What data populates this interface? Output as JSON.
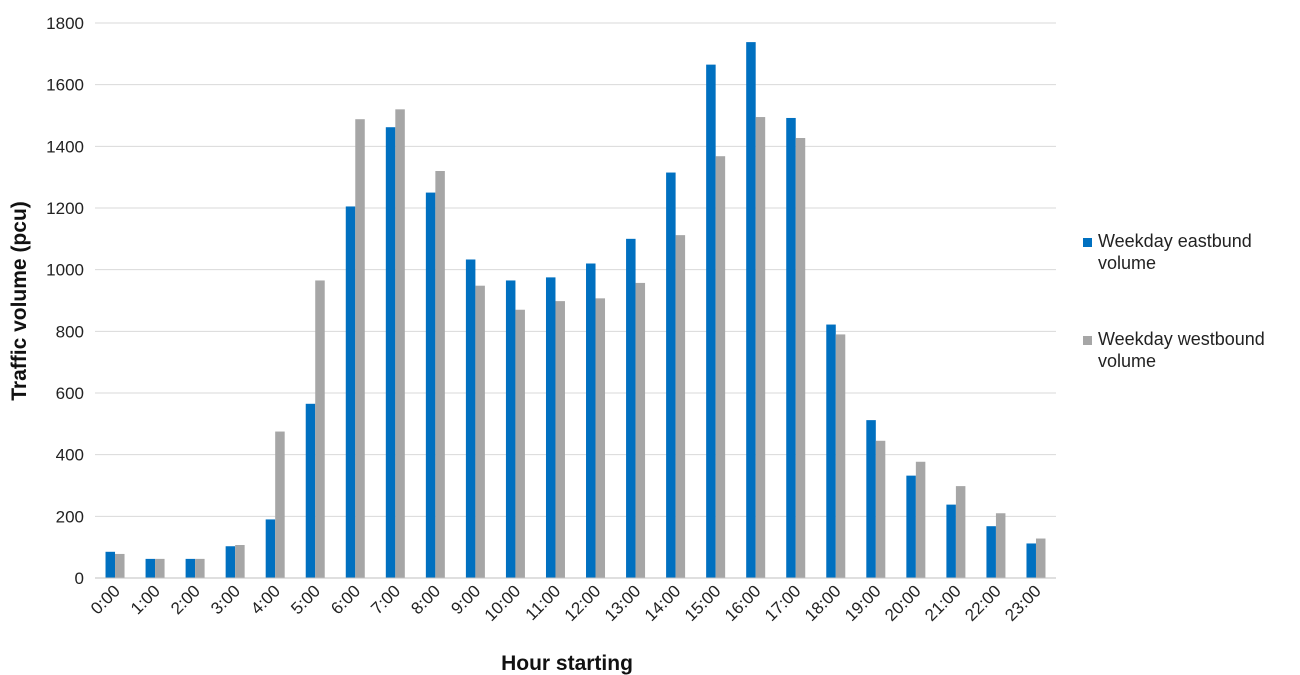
{
  "chart_data": {
    "type": "bar",
    "title": "",
    "xlabel": "Hour starting",
    "ylabel": "Traffic volume (pcu)",
    "ylim": [
      0,
      1800
    ],
    "yticks": [
      0,
      200,
      400,
      600,
      800,
      1000,
      1200,
      1400,
      1600,
      1800
    ],
    "grid": true,
    "legend_position": "right",
    "categories": [
      "0:00",
      "1:00",
      "2:00",
      "3:00",
      "4:00",
      "5:00",
      "6:00",
      "7:00",
      "8:00",
      "9:00",
      "10:00",
      "11:00",
      "12:00",
      "13:00",
      "14:00",
      "15:00",
      "16:00",
      "17:00",
      "18:00",
      "19:00",
      "20:00",
      "21:00",
      "22:00",
      "23:00"
    ],
    "series": [
      {
        "name": "Weekday eastbund volume",
        "legend_lines": [
          "Weekday eastbund",
          "volume"
        ],
        "color": "#0070c0",
        "values": [
          85,
          62,
          62,
          103,
          190,
          565,
          1205,
          1462,
          1250,
          1033,
          965,
          975,
          1020,
          1100,
          1315,
          1665,
          1738,
          1492,
          822,
          512,
          332,
          238,
          168,
          112
        ]
      },
      {
        "name": "Weekday westbound volume",
        "legend_lines": [
          "Weekday westbound",
          "volume"
        ],
        "color": "#a6a6a6",
        "values": [
          78,
          62,
          62,
          107,
          475,
          965,
          1488,
          1520,
          1320,
          948,
          870,
          898,
          907,
          957,
          1112,
          1368,
          1495,
          1427,
          790,
          445,
          377,
          298,
          210,
          128
        ]
      }
    ]
  }
}
